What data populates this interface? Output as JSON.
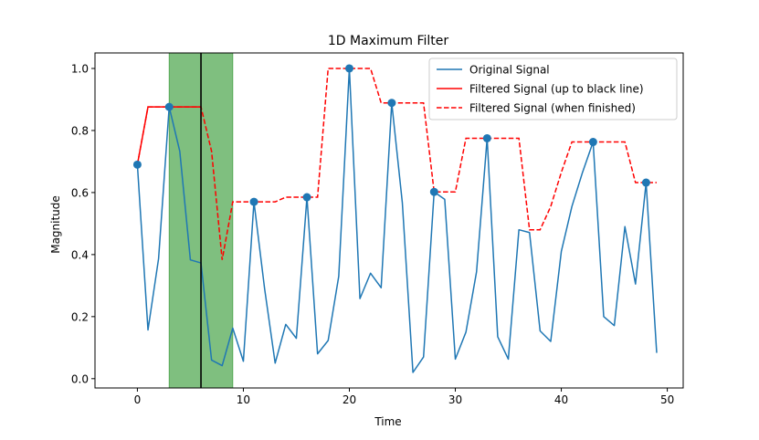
{
  "chart_data": {
    "type": "line",
    "title": "1D Maximum Filter",
    "xlabel": "Time",
    "ylabel": "Magnitude",
    "xlim": [
      -4,
      51.5
    ],
    "ylim": [
      -0.03,
      1.05
    ],
    "xticks": [
      0,
      10,
      20,
      30,
      40,
      50
    ],
    "yticks": [
      0.0,
      0.2,
      0.4,
      0.6,
      0.8,
      1.0
    ],
    "xtick_labels": [
      "0",
      "10",
      "20",
      "30",
      "40",
      "50"
    ],
    "ytick_labels": [
      "0.0",
      "0.2",
      "0.4",
      "0.6",
      "0.8",
      "1.0"
    ],
    "legend_position": "top-right",
    "window_span": [
      3,
      9
    ],
    "current_position": 6,
    "series": [
      {
        "name": "Original Signal",
        "color": "#1f77b4",
        "style": "solid",
        "x": [
          0,
          1,
          2,
          3,
          4,
          5,
          6,
          7,
          8,
          9,
          10,
          11,
          12,
          13,
          14,
          15,
          16,
          17,
          18,
          19,
          20,
          21,
          22,
          23,
          24,
          25,
          26,
          27,
          28,
          29,
          30,
          31,
          32,
          33,
          34,
          35,
          36,
          37,
          38,
          39,
          40,
          41,
          42,
          43,
          44,
          45,
          46,
          47,
          48,
          49
        ],
        "values": [
          0.69,
          0.157,
          0.387,
          0.876,
          0.733,
          0.383,
          0.373,
          0.06,
          0.042,
          0.163,
          0.056,
          0.57,
          0.291,
          0.05,
          0.175,
          0.13,
          0.585,
          0.08,
          0.123,
          0.33,
          1.0,
          0.258,
          0.34,
          0.293,
          0.889,
          0.567,
          0.02,
          0.07,
          0.602,
          0.578,
          0.063,
          0.15,
          0.344,
          0.775,
          0.135,
          0.063,
          0.48,
          0.471,
          0.154,
          0.12,
          0.41,
          0.555,
          0.665,
          0.763,
          0.2,
          0.171,
          0.49,
          0.305,
          0.632,
          0.083
        ]
      },
      {
        "name": "Filtered Signal (up to black line)",
        "color": "#ff0000",
        "style": "solid",
        "x": [
          0,
          1,
          2,
          3,
          4,
          5,
          6
        ],
        "values": [
          0.69,
          0.876,
          0.876,
          0.876,
          0.876,
          0.876,
          0.876
        ]
      },
      {
        "name": "Filtered Signal (when finished)",
        "color": "#ff0000",
        "style": "dashed",
        "x": [
          0,
          1,
          2,
          3,
          4,
          5,
          6,
          7,
          8,
          9,
          10,
          11,
          12,
          13,
          14,
          15,
          16,
          17,
          18,
          19,
          20,
          21,
          22,
          23,
          24,
          25,
          26,
          27,
          28,
          29,
          30,
          31,
          32,
          33,
          34,
          35,
          36,
          37,
          38,
          39,
          40,
          41,
          42,
          43,
          44,
          45,
          46,
          47,
          48,
          49
        ],
        "values": [
          0.69,
          0.876,
          0.876,
          0.876,
          0.876,
          0.876,
          0.876,
          0.733,
          0.383,
          0.57,
          0.57,
          0.57,
          0.57,
          0.57,
          0.585,
          0.585,
          0.585,
          0.585,
          1.0,
          1.0,
          1.0,
          1.0,
          1.0,
          0.889,
          0.889,
          0.889,
          0.889,
          0.889,
          0.602,
          0.602,
          0.602,
          0.775,
          0.775,
          0.775,
          0.775,
          0.775,
          0.775,
          0.48,
          0.48,
          0.555,
          0.665,
          0.763,
          0.763,
          0.763,
          0.763,
          0.763,
          0.763,
          0.632,
          0.632,
          0.632
        ]
      }
    ],
    "markers": {
      "x": [
        0,
        3,
        11,
        16,
        20,
        24,
        28,
        33,
        43,
        48
      ],
      "values": [
        0.69,
        0.876,
        0.57,
        0.585,
        1.0,
        0.889,
        0.602,
        0.775,
        0.763,
        0.632
      ]
    }
  }
}
